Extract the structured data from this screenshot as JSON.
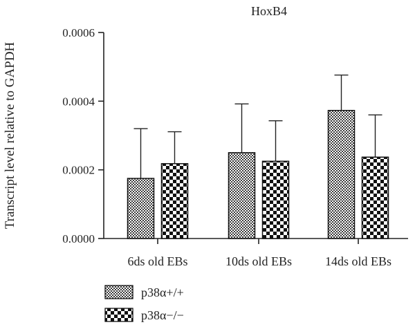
{
  "chart_data": {
    "type": "bar",
    "title": "HoxB4",
    "xlabel": "",
    "ylabel": "Transcript level relative to GAPDH",
    "ylim": [
      0,
      0.0006
    ],
    "yticks": [
      "0.0000",
      "0.0002",
      "0.0004",
      "0.0006"
    ],
    "ytick_values": [
      0,
      0.0002,
      0.0004,
      0.0006
    ],
    "categories": [
      "6ds old EBs",
      "10ds old EBs",
      "14ds old EBs"
    ],
    "series": [
      {
        "name": "p38α+/+",
        "values": [
          0.000175,
          0.00025,
          0.000373
        ],
        "error": [
          0.000145,
          0.000142,
          0.000103
        ],
        "pattern": "fine-checker"
      },
      {
        "name": "p38α−/−",
        "values": [
          0.000218,
          0.000225,
          0.000237
        ],
        "error": [
          9.3e-05,
          0.000118,
          0.000123
        ],
        "pattern": "coarse-checker"
      }
    ],
    "legend_position": "bottom-left",
    "grid": false
  }
}
